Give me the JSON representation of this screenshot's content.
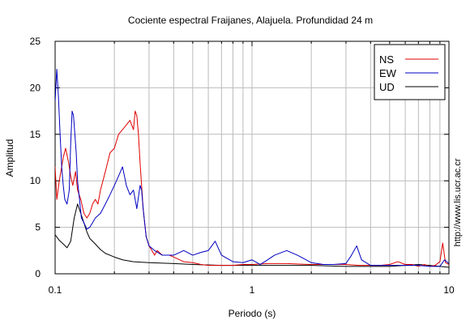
{
  "chart_data": {
    "type": "line",
    "title": "Cociente espectral Fraijanes, Alajuela. Profundidad 24 m",
    "xlabel": "Periodo (s)",
    "ylabel": "Amplitud",
    "x_scale": "log",
    "xlim": [
      0.1,
      10
    ],
    "ylim": [
      0,
      25
    ],
    "x_ticks": [
      0.1,
      1,
      10
    ],
    "x_tick_labels": [
      "0.1",
      "1",
      "10"
    ],
    "y_ticks": [
      0,
      5,
      10,
      15,
      20,
      25
    ],
    "y_tick_labels": [
      "0",
      "5",
      "10",
      "15",
      "20",
      "25"
    ],
    "grid": true,
    "legend_position": "top-right",
    "watermark": "http://www.lis.ucr.ac.cr",
    "series": [
      {
        "name": "NS",
        "color": "#e00000",
        "x": [
          0.1,
          0.102,
          0.105,
          0.11,
          0.113,
          0.117,
          0.12,
          0.123,
          0.127,
          0.13,
          0.135,
          0.14,
          0.145,
          0.15,
          0.155,
          0.16,
          0.165,
          0.17,
          0.175,
          0.18,
          0.19,
          0.2,
          0.21,
          0.22,
          0.23,
          0.24,
          0.25,
          0.255,
          0.26,
          0.265,
          0.27,
          0.28,
          0.29,
          0.3,
          0.31,
          0.32,
          0.33,
          0.35,
          0.38,
          0.4,
          0.45,
          0.5,
          0.55,
          0.6,
          0.7,
          0.8,
          0.9,
          1.0,
          1.2,
          1.5,
          2.0,
          2.5,
          3.0,
          3.5,
          4.0,
          4.5,
          5.0,
          5.5,
          6.0,
          6.5,
          7.0,
          7.5,
          8.0,
          8.5,
          9.0,
          9.3,
          9.6,
          10.0
        ],
        "y": [
          11.5,
          8.0,
          10.0,
          12.5,
          13.5,
          12.0,
          10.5,
          9.5,
          11.0,
          9.0,
          8.0,
          6.5,
          6.0,
          6.5,
          7.5,
          8.0,
          7.5,
          9.0,
          10.0,
          11.0,
          13.0,
          13.5,
          15.0,
          15.5,
          16.0,
          16.5,
          15.5,
          17.5,
          17.0,
          15.0,
          12.0,
          7.0,
          4.0,
          3.0,
          2.5,
          2.0,
          2.5,
          2.0,
          2.0,
          1.8,
          1.3,
          1.2,
          1.0,
          0.9,
          0.9,
          0.9,
          1.0,
          1.0,
          1.1,
          1.1,
          1.0,
          1.0,
          1.0,
          0.9,
          0.9,
          0.9,
          1.0,
          1.3,
          1.0,
          1.0,
          0.8,
          1.0,
          0.8,
          0.9,
          1.3,
          3.3,
          1.2,
          1.0
        ]
      },
      {
        "name": "EW",
        "color": "#0000c0",
        "x": [
          0.1,
          0.102,
          0.104,
          0.106,
          0.108,
          0.11,
          0.112,
          0.115,
          0.118,
          0.12,
          0.122,
          0.124,
          0.126,
          0.128,
          0.13,
          0.133,
          0.136,
          0.14,
          0.145,
          0.15,
          0.155,
          0.16,
          0.17,
          0.18,
          0.19,
          0.2,
          0.21,
          0.22,
          0.225,
          0.23,
          0.24,
          0.25,
          0.26,
          0.27,
          0.275,
          0.28,
          0.29,
          0.3,
          0.32,
          0.35,
          0.4,
          0.45,
          0.5,
          0.55,
          0.6,
          0.65,
          0.7,
          0.8,
          0.9,
          1.0,
          1.1,
          1.2,
          1.3,
          1.5,
          1.7,
          2.0,
          2.3,
          2.6,
          3.0,
          3.2,
          3.4,
          3.6,
          4.0,
          5.0,
          6.0,
          7.0,
          8.0,
          9.0,
          9.5,
          10.0
        ],
        "y": [
          18.5,
          22.0,
          19.0,
          15.0,
          11.5,
          9.5,
          8.0,
          7.5,
          9.0,
          14.0,
          17.5,
          17.0,
          15.0,
          13.0,
          10.0,
          8.0,
          6.0,
          5.5,
          4.8,
          5.0,
          5.5,
          6.0,
          6.5,
          7.5,
          8.5,
          9.5,
          10.5,
          11.5,
          10.5,
          9.5,
          8.5,
          9.0,
          7.0,
          9.5,
          9.0,
          7.0,
          4.0,
          3.0,
          2.5,
          2.0,
          2.0,
          2.5,
          2.0,
          2.3,
          2.5,
          3.5,
          2.0,
          1.3,
          1.2,
          1.5,
          1.0,
          1.5,
          2.0,
          2.5,
          2.0,
          1.2,
          1.0,
          1.0,
          1.1,
          2.0,
          3.0,
          1.5,
          0.9,
          0.9,
          0.9,
          0.9,
          0.8,
          0.8,
          1.5,
          1.1
        ]
      },
      {
        "name": "UD",
        "color": "#000000",
        "x": [
          0.1,
          0.105,
          0.11,
          0.115,
          0.12,
          0.125,
          0.13,
          0.135,
          0.14,
          0.145,
          0.15,
          0.16,
          0.17,
          0.18,
          0.2,
          0.22,
          0.25,
          0.3,
          0.4,
          0.5,
          0.7,
          1.0,
          1.5,
          2.0,
          3.0,
          4.0,
          5.0,
          6.0,
          7.0,
          8.0,
          9.0,
          10.0
        ],
        "y": [
          4.2,
          3.6,
          3.2,
          2.8,
          3.5,
          6.0,
          7.5,
          6.5,
          5.5,
          4.5,
          3.8,
          3.2,
          2.6,
          2.2,
          1.8,
          1.5,
          1.3,
          1.2,
          1.1,
          1.0,
          0.9,
          0.9,
          0.9,
          0.9,
          0.8,
          0.8,
          0.8,
          0.9,
          1.0,
          0.9,
          0.8,
          0.7
        ]
      }
    ]
  }
}
